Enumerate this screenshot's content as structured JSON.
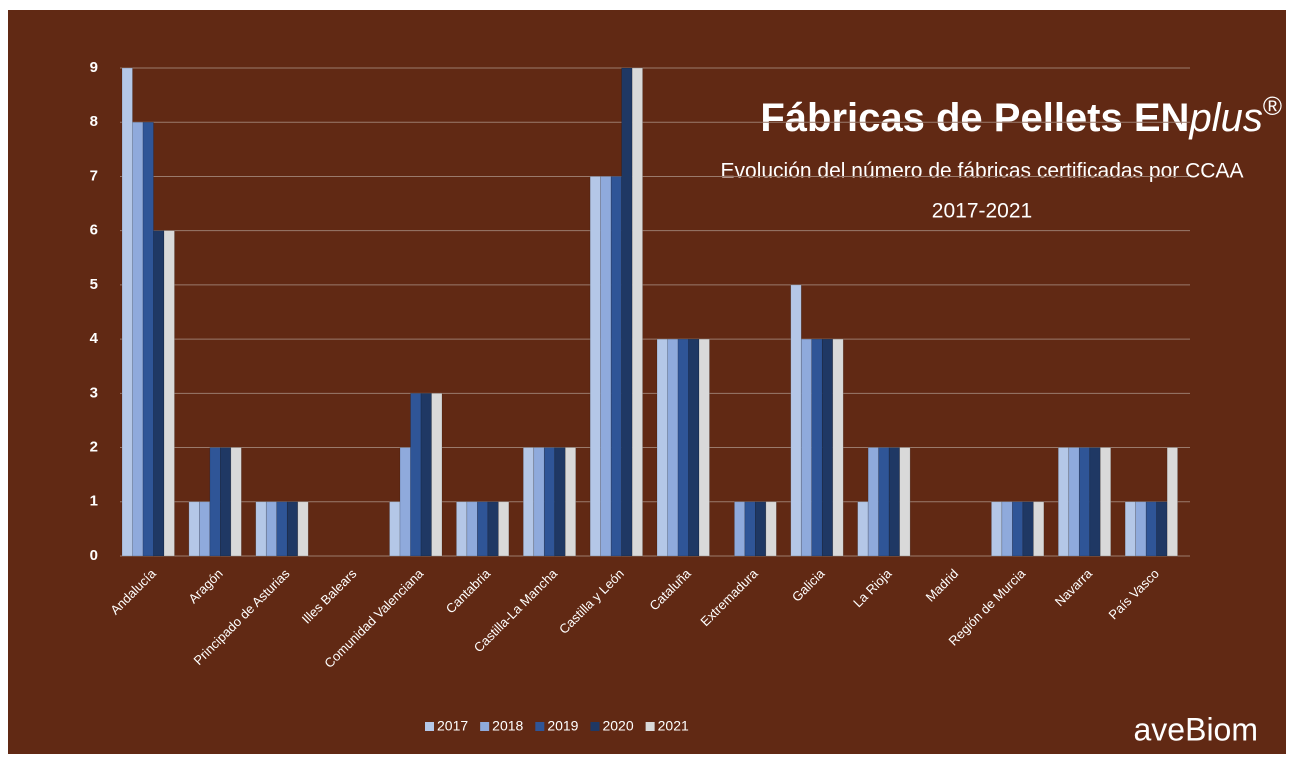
{
  "chart_data": {
    "type": "bar",
    "title": "Fábricas de Pellets EN",
    "title_italic": "plus",
    "title_mark": "®",
    "subtitle": [
      "Evolución del número de fábricas certificadas por CCAA",
      "2017-2021"
    ],
    "logo": "aveBiom",
    "categories": [
      "Andalucía",
      "Aragón",
      "Principado de Asturias",
      "Illes Balears",
      "Comunidad Valenciana",
      "Cantabria",
      "Castilla-La Mancha",
      "Castilla y León",
      "Cataluña",
      "Extremadura",
      "Galicia",
      "La Rioja",
      "Madrid",
      "Región de Murcia",
      "Navarra",
      "País Vasco"
    ],
    "series": [
      {
        "name": "2017",
        "color": "#b4c7e7",
        "values": [
          9,
          1,
          1,
          0,
          1,
          1,
          2,
          7,
          4,
          0,
          5,
          1,
          0,
          1,
          2,
          1
        ]
      },
      {
        "name": "2018",
        "color": "#8faadc",
        "values": [
          8,
          1,
          1,
          0,
          2,
          1,
          2,
          7,
          4,
          1,
          4,
          2,
          0,
          1,
          2,
          1
        ]
      },
      {
        "name": "2019",
        "color": "#2f5597",
        "values": [
          8,
          2,
          1,
          0,
          3,
          1,
          2,
          7,
          4,
          1,
          4,
          2,
          0,
          1,
          2,
          1
        ]
      },
      {
        "name": "2020",
        "color": "#1f3864",
        "values": [
          6,
          2,
          1,
          0,
          3,
          1,
          2,
          9,
          4,
          1,
          4,
          2,
          0,
          1,
          2,
          1
        ]
      },
      {
        "name": "2021",
        "color": "#d9d9d9",
        "values": [
          6,
          2,
          1,
          0,
          3,
          1,
          2,
          9,
          4,
          1,
          4,
          2,
          0,
          1,
          2,
          2
        ]
      }
    ],
    "ylim": [
      0,
      9
    ],
    "yticks": [
      0,
      1,
      2,
      3,
      4,
      5,
      6,
      7,
      8,
      9
    ],
    "grid": true,
    "legend": "bottom"
  }
}
